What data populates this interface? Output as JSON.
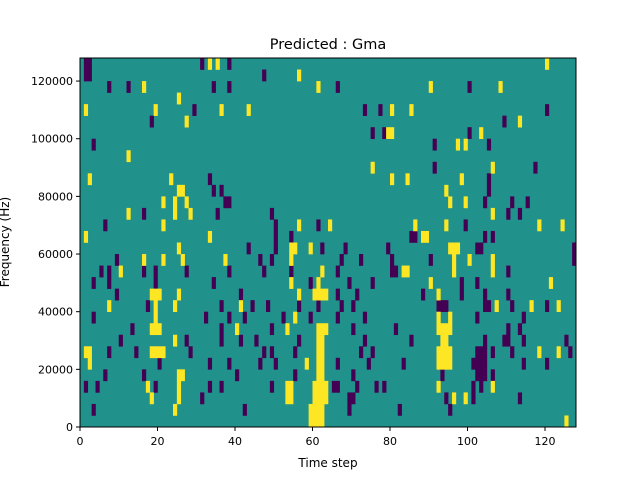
{
  "chart_data": {
    "type": "heatmap",
    "title": "Predicted : Gma",
    "xlabel": "Time step",
    "ylabel": "Frequency (Hz)",
    "xlim": [
      0,
      128
    ],
    "ylim": [
      0,
      128000
    ],
    "n_cols": 128,
    "n_rows": 32,
    "row_height_hz": 4000,
    "xticks": [
      0,
      20,
      40,
      60,
      80,
      100,
      120
    ],
    "yticks": [
      0,
      20000,
      40000,
      60000,
      80000,
      100000,
      120000
    ],
    "ytick_labels": [
      "0",
      "20000",
      "40000",
      "60000",
      "80000",
      "100000",
      "120000"
    ],
    "colors": {
      "background": "#21918c",
      "low": "#440154",
      "high": "#fde725"
    },
    "cells_note": "each entry is [col_start, col_end, row]; row 0 = lowest frequency bin",
    "low_cells": [
      [
        1,
        2,
        31
      ],
      [
        31,
        31,
        31
      ],
      [
        38,
        38,
        31
      ],
      [
        1,
        2,
        30
      ],
      [
        47,
        47,
        30
      ],
      [
        7,
        7,
        29
      ],
      [
        12,
        12,
        29
      ],
      [
        34,
        34,
        29
      ],
      [
        38,
        38,
        29
      ],
      [
        66,
        66,
        29
      ],
      [
        100,
        100,
        29
      ],
      [
        29,
        29,
        27
      ],
      [
        73,
        73,
        27
      ],
      [
        77,
        77,
        27
      ],
      [
        120,
        120,
        27
      ],
      [
        18,
        18,
        26
      ],
      [
        109,
        109,
        26
      ],
      [
        75,
        75,
        25
      ],
      [
        78,
        78,
        25
      ],
      [
        100,
        100,
        25
      ],
      [
        3,
        3,
        24
      ],
      [
        91,
        91,
        24
      ],
      [
        105,
        105,
        24
      ],
      [
        91,
        91,
        22
      ],
      [
        117,
        117,
        22
      ],
      [
        33,
        33,
        21
      ],
      [
        105,
        105,
        21
      ],
      [
        34,
        34,
        20
      ],
      [
        36,
        36,
        20
      ],
      [
        105,
        105,
        20
      ],
      [
        37,
        38,
        19
      ],
      [
        104,
        104,
        19
      ],
      [
        111,
        111,
        19
      ],
      [
        115,
        115,
        19
      ],
      [
        16,
        16,
        18
      ],
      [
        35,
        35,
        18
      ],
      [
        49,
        49,
        18
      ],
      [
        110,
        110,
        18
      ],
      [
        113,
        113,
        18
      ],
      [
        6,
        6,
        17
      ],
      [
        50,
        50,
        17
      ],
      [
        61,
        61,
        17
      ],
      [
        99,
        99,
        17
      ],
      [
        50,
        50,
        16
      ],
      [
        54,
        54,
        16
      ],
      [
        85,
        86,
        16
      ],
      [
        104,
        104,
        16
      ],
      [
        106,
        106,
        16
      ],
      [
        43,
        43,
        15
      ],
      [
        50,
        50,
        15
      ],
      [
        62,
        62,
        15
      ],
      [
        68,
        68,
        15
      ],
      [
        79,
        79,
        15
      ],
      [
        102,
        103,
        15
      ],
      [
        127,
        127,
        15
      ],
      [
        9,
        9,
        14
      ],
      [
        46,
        46,
        14
      ],
      [
        49,
        49,
        14
      ],
      [
        67,
        67,
        14
      ],
      [
        72,
        72,
        14
      ],
      [
        80,
        80,
        14
      ],
      [
        90,
        90,
        14
      ],
      [
        127,
        127,
        14
      ],
      [
        5,
        5,
        13
      ],
      [
        7,
        7,
        13
      ],
      [
        16,
        16,
        13
      ],
      [
        19,
        19,
        13
      ],
      [
        27,
        27,
        13
      ],
      [
        38,
        38,
        13
      ],
      [
        47,
        47,
        13
      ],
      [
        54,
        54,
        13
      ],
      [
        66,
        66,
        13
      ],
      [
        80,
        81,
        13
      ],
      [
        110,
        110,
        13
      ],
      [
        3,
        3,
        12
      ],
      [
        7,
        7,
        12
      ],
      [
        19,
        19,
        12
      ],
      [
        34,
        34,
        12
      ],
      [
        59,
        59,
        12
      ],
      [
        69,
        69,
        12
      ],
      [
        75,
        75,
        12
      ],
      [
        98,
        98,
        12
      ],
      [
        102,
        102,
        12
      ],
      [
        9,
        9,
        11
      ],
      [
        41,
        41,
        11
      ],
      [
        66,
        66,
        11
      ],
      [
        71,
        71,
        11
      ],
      [
        88,
        88,
        11
      ],
      [
        98,
        98,
        11
      ],
      [
        104,
        104,
        11
      ],
      [
        110,
        110,
        11
      ],
      [
        17,
        17,
        10
      ],
      [
        36,
        36,
        10
      ],
      [
        44,
        44,
        10
      ],
      [
        48,
        48,
        10
      ],
      [
        56,
        56,
        10
      ],
      [
        61,
        61,
        10
      ],
      [
        67,
        67,
        10
      ],
      [
        70,
        70,
        10
      ],
      [
        92,
        94,
        10
      ],
      [
        104,
        105,
        10
      ],
      [
        111,
        111,
        10
      ],
      [
        120,
        120,
        10
      ],
      [
        3,
        3,
        9
      ],
      [
        32,
        32,
        9
      ],
      [
        38,
        38,
        9
      ],
      [
        42,
        42,
        9
      ],
      [
        52,
        52,
        9
      ],
      [
        59,
        59,
        9
      ],
      [
        66,
        66,
        9
      ],
      [
        73,
        73,
        9
      ],
      [
        102,
        102,
        9
      ],
      [
        114,
        114,
        9
      ],
      [
        13,
        13,
        8
      ],
      [
        36,
        36,
        8
      ],
      [
        49,
        49,
        8
      ],
      [
        70,
        70,
        8
      ],
      [
        81,
        81,
        8
      ],
      [
        110,
        110,
        8
      ],
      [
        113,
        113,
        8
      ],
      [
        10,
        10,
        7
      ],
      [
        27,
        27,
        7
      ],
      [
        36,
        36,
        7
      ],
      [
        41,
        41,
        7
      ],
      [
        45,
        45,
        7
      ],
      [
        56,
        56,
        7
      ],
      [
        73,
        73,
        7
      ],
      [
        85,
        85,
        7
      ],
      [
        104,
        104,
        7
      ],
      [
        109,
        110,
        7
      ],
      [
        114,
        114,
        7
      ],
      [
        125,
        125,
        7
      ],
      [
        7,
        7,
        6
      ],
      [
        14,
        14,
        6
      ],
      [
        28,
        28,
        6
      ],
      [
        47,
        47,
        6
      ],
      [
        49,
        49,
        6
      ],
      [
        55,
        55,
        6
      ],
      [
        72,
        72,
        6
      ],
      [
        75,
        75,
        6
      ],
      [
        102,
        104,
        6
      ],
      [
        106,
        106,
        6
      ],
      [
        111,
        111,
        6
      ],
      [
        126,
        126,
        6
      ],
      [
        20,
        20,
        5
      ],
      [
        33,
        33,
        5
      ],
      [
        38,
        38,
        5
      ],
      [
        46,
        46,
        5
      ],
      [
        50,
        50,
        5
      ],
      [
        66,
        66,
        5
      ],
      [
        74,
        74,
        5
      ],
      [
        83,
        83,
        5
      ],
      [
        101,
        104,
        5
      ],
      [
        114,
        114,
        5
      ],
      [
        120,
        120,
        5
      ],
      [
        6,
        6,
        4
      ],
      [
        16,
        16,
        4
      ],
      [
        40,
        40,
        4
      ],
      [
        55,
        55,
        4
      ],
      [
        70,
        70,
        4
      ],
      [
        93,
        93,
        4
      ],
      [
        102,
        104,
        4
      ],
      [
        106,
        106,
        4
      ],
      [
        1,
        1,
        3
      ],
      [
        4,
        4,
        3
      ],
      [
        19,
        19,
        3
      ],
      [
        33,
        33,
        3
      ],
      [
        36,
        36,
        3
      ],
      [
        49,
        49,
        3
      ],
      [
        65,
        66,
        3
      ],
      [
        71,
        71,
        3
      ],
      [
        76,
        76,
        3
      ],
      [
        78,
        78,
        3
      ],
      [
        101,
        101,
        3
      ],
      [
        103,
        103,
        3
      ],
      [
        31,
        31,
        2
      ],
      [
        69,
        70,
        2
      ],
      [
        94,
        94,
        2
      ],
      [
        101,
        101,
        2
      ],
      [
        113,
        113,
        2
      ],
      [
        3,
        3,
        1
      ],
      [
        42,
        42,
        1
      ],
      [
        69,
        69,
        1
      ],
      [
        82,
        82,
        1
      ],
      [
        95,
        95,
        1
      ]
    ],
    "high_cells": [
      [
        33,
        33,
        31
      ],
      [
        35,
        35,
        31
      ],
      [
        120,
        120,
        31
      ],
      [
        56,
        56,
        30
      ],
      [
        16,
        16,
        29
      ],
      [
        61,
        61,
        29
      ],
      [
        90,
        90,
        29
      ],
      [
        108,
        108,
        29
      ],
      [
        25,
        25,
        28
      ],
      [
        1,
        1,
        27
      ],
      [
        19,
        19,
        27
      ],
      [
        36,
        36,
        27
      ],
      [
        43,
        43,
        27
      ],
      [
        80,
        80,
        27
      ],
      [
        85,
        85,
        27
      ],
      [
        27,
        27,
        26
      ],
      [
        113,
        113,
        26
      ],
      [
        79,
        80,
        25
      ],
      [
        103,
        103,
        25
      ],
      [
        97,
        97,
        24
      ],
      [
        99,
        99,
        24
      ],
      [
        12,
        12,
        23
      ],
      [
        75,
        75,
        22
      ],
      [
        106,
        106,
        22
      ],
      [
        2,
        2,
        21
      ],
      [
        23,
        23,
        21
      ],
      [
        80,
        80,
        21
      ],
      [
        84,
        84,
        21
      ],
      [
        98,
        98,
        21
      ],
      [
        25,
        26,
        20
      ],
      [
        94,
        94,
        20
      ],
      [
        21,
        21,
        19
      ],
      [
        24,
        24,
        19
      ],
      [
        27,
        27,
        19
      ],
      [
        95,
        95,
        19
      ],
      [
        99,
        99,
        19
      ],
      [
        12,
        12,
        18
      ],
      [
        24,
        24,
        18
      ],
      [
        28,
        28,
        18
      ],
      [
        106,
        106,
        18
      ],
      [
        21,
        21,
        17
      ],
      [
        56,
        56,
        17
      ],
      [
        64,
        64,
        17
      ],
      [
        86,
        86,
        17
      ],
      [
        94,
        94,
        17
      ],
      [
        118,
        118,
        17
      ],
      [
        124,
        124,
        17
      ],
      [
        1,
        1,
        16
      ],
      [
        33,
        33,
        16
      ],
      [
        88,
        89,
        16
      ],
      [
        25,
        25,
        15
      ],
      [
        54,
        55,
        15
      ],
      [
        59,
        59,
        15
      ],
      [
        95,
        97,
        15
      ],
      [
        16,
        16,
        14
      ],
      [
        21,
        21,
        14
      ],
      [
        26,
        26,
        14
      ],
      [
        37,
        37,
        14
      ],
      [
        54,
        54,
        14
      ],
      [
        96,
        96,
        14
      ],
      [
        100,
        100,
        14
      ],
      [
        106,
        106,
        14
      ],
      [
        10,
        10,
        13
      ],
      [
        62,
        62,
        13
      ],
      [
        83,
        84,
        13
      ],
      [
        96,
        96,
        13
      ],
      [
        106,
        106,
        13
      ],
      [
        54,
        54,
        12
      ],
      [
        61,
        61,
        12
      ],
      [
        90,
        90,
        12
      ],
      [
        121,
        121,
        12
      ],
      [
        18,
        20,
        11
      ],
      [
        25,
        25,
        11
      ],
      [
        56,
        56,
        11
      ],
      [
        60,
        63,
        11
      ],
      [
        92,
        92,
        11
      ],
      [
        7,
        7,
        10
      ],
      [
        19,
        19,
        10
      ],
      [
        24,
        24,
        10
      ],
      [
        41,
        41,
        10
      ],
      [
        107,
        107,
        10
      ],
      [
        116,
        116,
        10
      ],
      [
        123,
        123,
        10
      ],
      [
        19,
        19,
        9
      ],
      [
        55,
        55,
        9
      ],
      [
        92,
        92,
        9
      ],
      [
        95,
        95,
        9
      ],
      [
        18,
        20,
        8
      ],
      [
        40,
        40,
        8
      ],
      [
        53,
        53,
        8
      ],
      [
        61,
        63,
        8
      ],
      [
        92,
        95,
        8
      ],
      [
        24,
        24,
        7
      ],
      [
        61,
        62,
        7
      ],
      [
        93,
        94,
        7
      ],
      [
        1,
        2,
        6
      ],
      [
        18,
        21,
        6
      ],
      [
        61,
        62,
        6
      ],
      [
        92,
        95,
        6
      ],
      [
        118,
        118,
        6
      ],
      [
        123,
        123,
        6
      ],
      [
        2,
        2,
        5
      ],
      [
        58,
        58,
        5
      ],
      [
        61,
        62,
        5
      ],
      [
        92,
        95,
        5
      ],
      [
        25,
        26,
        4
      ],
      [
        61,
        62,
        4
      ],
      [
        17,
        17,
        3
      ],
      [
        25,
        25,
        3
      ],
      [
        53,
        54,
        3
      ],
      [
        60,
        63,
        3
      ],
      [
        92,
        92,
        3
      ],
      [
        106,
        106,
        3
      ],
      [
        18,
        18,
        2
      ],
      [
        25,
        25,
        2
      ],
      [
        53,
        54,
        2
      ],
      [
        60,
        63,
        2
      ],
      [
        96,
        96,
        2
      ],
      [
        99,
        99,
        2
      ],
      [
        24,
        24,
        1
      ],
      [
        59,
        62,
        1
      ],
      [
        59,
        62,
        0
      ],
      [
        125,
        125,
        0
      ]
    ]
  }
}
